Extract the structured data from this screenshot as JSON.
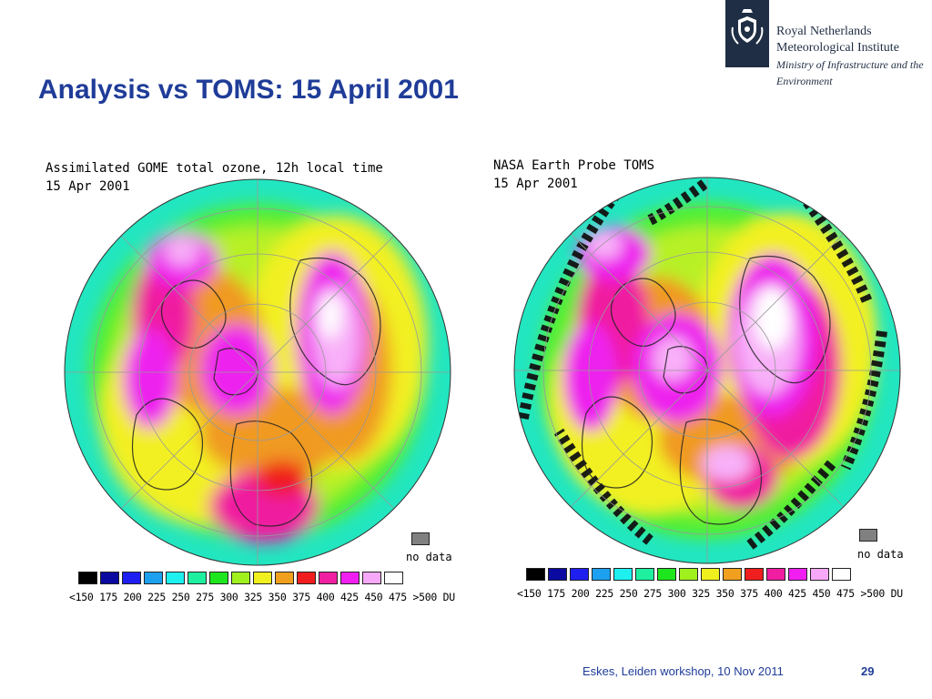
{
  "slide": {
    "title": "Analysis vs TOMS: 15 April 2001",
    "footer": "Eskes, Leiden workshop, 10 Nov 2011",
    "page_number": "29"
  },
  "logo": {
    "line1": "Royal Netherlands",
    "line2": "Meteorological Institute",
    "line3": "Ministry of Infrastructure and the",
    "line4": "Environment"
  },
  "left_map": {
    "title": "Assimilated GOME total ozone, 12h local time",
    "date": "15 Apr 2001"
  },
  "right_map": {
    "title": "NASA Earth Probe TOMS",
    "date": "15 Apr 2001"
  },
  "legend": {
    "no_data": "no data",
    "scale_text": "<150 175 200 225 250 275 300 325 350 375 400 425 450 475 >500 DU",
    "colors": [
      "#000000",
      "#0a0aa0",
      "#1e1ef0",
      "#1ea0f0",
      "#1ef0f0",
      "#1ef0a0",
      "#1ee61e",
      "#a0f01e",
      "#f0f01e",
      "#f0a01e",
      "#f01e1e",
      "#f01ea0",
      "#f01ef0",
      "#f8a8f8",
      "#ffffff"
    ],
    "no_data_color": "#808080"
  }
}
